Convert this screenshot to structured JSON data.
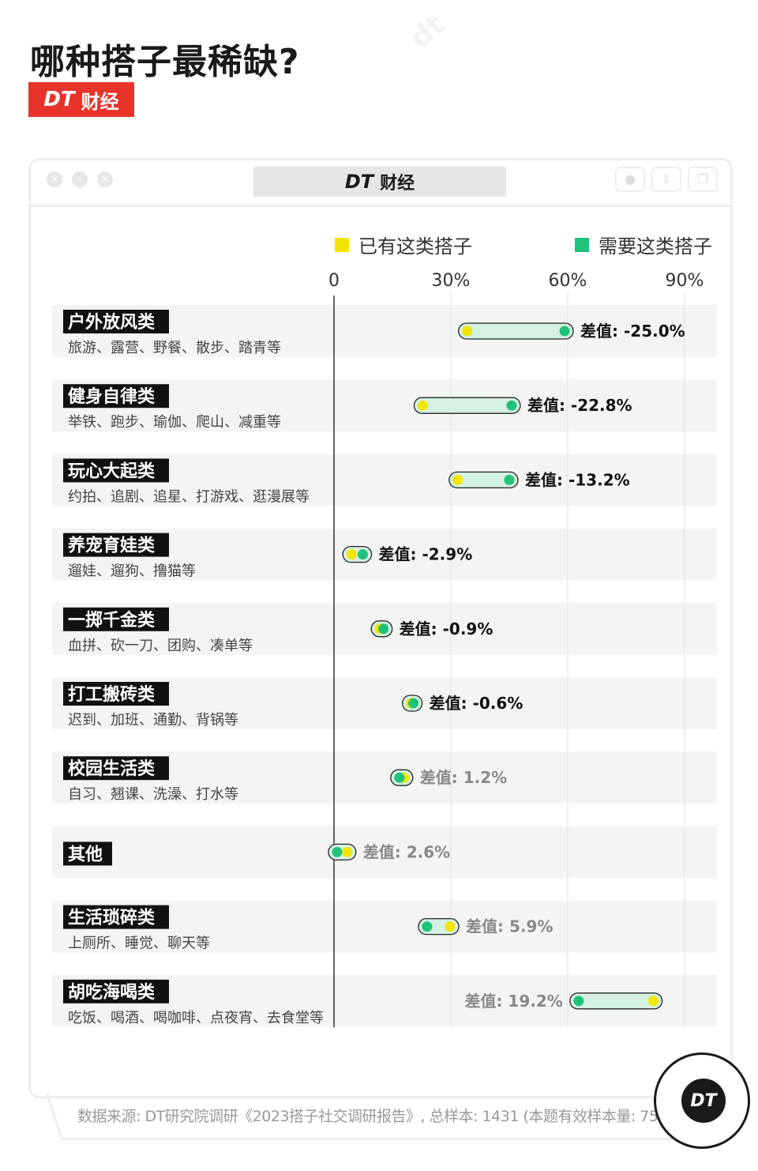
{
  "title": "哪种搭子最稀缺?",
  "brand": {
    "logo_text": "DT",
    "name": "财经"
  },
  "window": {
    "title_logo": "DT",
    "title_name": "财经"
  },
  "legend": [
    {
      "label": "已有这类搭子",
      "color": "#f2e600"
    },
    {
      "label": "需要这类搭子",
      "color": "#1ec27a"
    }
  ],
  "colors": {
    "have": "#f2e600",
    "need": "#1ec27a",
    "range_fill": "#d4f1e2",
    "row_bg": "#f4f4f4",
    "label_bg": "#111111"
  },
  "chart_data": {
    "type": "dumbbell",
    "x_ticks": [
      "0",
      "30%",
      "60%",
      "90%"
    ],
    "xlim": [
      0,
      90
    ],
    "series": [
      {
        "name": "已有这类搭子"
      },
      {
        "name": "需要这类搭子"
      }
    ],
    "gap_prefix": "差值:",
    "rows": [
      {
        "category": "户外放风类",
        "examples": "旅游、露营、野餐、散步、踏青等",
        "have": 34.2,
        "need": 59.2,
        "diff": "-25.0%"
      },
      {
        "category": "健身自律类",
        "examples": "举铁、跑步、瑜伽、爬山、减重等",
        "have": 22.8,
        "need": 45.6,
        "diff": "-22.8%"
      },
      {
        "category": "玩心大起类",
        "examples": "约拍、追剧、追星、打游戏、逛漫展等",
        "have": 31.8,
        "need": 45.0,
        "diff": "-13.2%"
      },
      {
        "category": "养宠育娃类",
        "examples": "遛娃、遛狗、撸猫等",
        "have": 4.5,
        "need": 7.4,
        "diff": "-2.9%"
      },
      {
        "category": "一掷千金类",
        "examples": "血拼、砍一刀、团购、凑单等",
        "have": 11.8,
        "need": 12.7,
        "diff": "-0.9%"
      },
      {
        "category": "打工搬砖类",
        "examples": "迟到、加班、通勤、背锅等",
        "have": 19.8,
        "need": 20.4,
        "diff": "-0.6%"
      },
      {
        "category": "校园生活类",
        "examples": "自习、翘课、洗澡、打水等",
        "have": 18.0,
        "need": 16.8,
        "diff": "1.2%"
      },
      {
        "category": "其他",
        "examples": "",
        "have": 3.4,
        "need": 0.8,
        "diff": "2.6%"
      },
      {
        "category": "生活琐碎类",
        "examples": "上厕所、睡觉、聊天等",
        "have": 29.8,
        "need": 23.9,
        "diff": "5.9%"
      },
      {
        "category": "胡吃海喝类",
        "examples": "吃饭、喝酒、喝咖啡、点夜宵、去食堂等",
        "have": 82.0,
        "need": 62.8,
        "diff": "19.2%"
      }
    ]
  },
  "footer": {
    "source": "数据来源: DT研究院调研《2023搭子社交调研报告》, 总样本: 1431 (本题有效样本量: 755)"
  },
  "logo": {
    "text": "DT"
  }
}
